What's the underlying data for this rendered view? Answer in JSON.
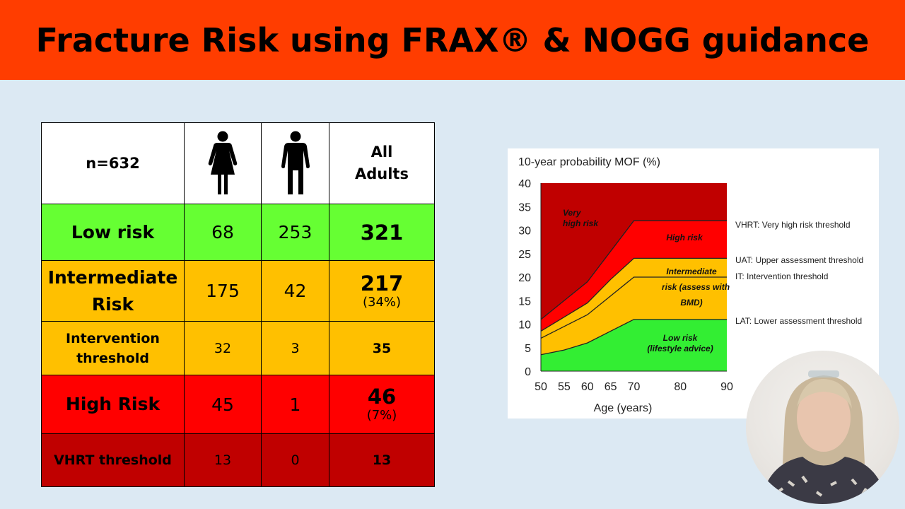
{
  "title": "Fracture Risk using FRAX® & NOGG guidance",
  "table": {
    "header": {
      "n_label": "n=632",
      "female_icon": "woman-icon",
      "male_icon": "man-icon",
      "all_line1": "All",
      "all_line2": "Adults"
    },
    "rows": [
      {
        "label": "Low risk",
        "female": "68",
        "male": "253",
        "all": "321",
        "pct": "",
        "color": "#66ff33"
      },
      {
        "label_line1": "Intermediate",
        "label_line2": "Risk",
        "female": "175",
        "male": "42",
        "all": "217",
        "pct": "(34%)",
        "color": "#ffc000"
      },
      {
        "label_line1": "Intervention",
        "label_line2": "threshold",
        "female": "32",
        "male": "3",
        "all": "35",
        "pct": "",
        "color": "#ffc000"
      },
      {
        "label": "High Risk",
        "female": "45",
        "male": "1",
        "all": "46",
        "pct": "(7%)",
        "color": "#ff0000"
      },
      {
        "label": "VHRT threshold",
        "female": "13",
        "male": "0",
        "all": "13",
        "pct": "",
        "color": "#c00000"
      }
    ]
  },
  "chart_data": {
    "type": "area",
    "title": "10-year probability MOF (%)",
    "xlabel": "Age (years)",
    "ylabel": "",
    "x": [
      50,
      55,
      60,
      65,
      70,
      75,
      80,
      85,
      90
    ],
    "xlim": [
      50,
      90
    ],
    "ylim": [
      0,
      40
    ],
    "x_ticks": [
      "50",
      "55",
      "60",
      "65",
      "70",
      "80",
      "90"
    ],
    "x_tick_values": [
      50,
      55,
      60,
      65,
      70,
      80,
      90
    ],
    "y_ticks": [
      "0",
      "5",
      "10",
      "15",
      "20",
      "25",
      "30",
      "35",
      "40"
    ],
    "y_tick_values": [
      0,
      5,
      10,
      15,
      20,
      25,
      30,
      35,
      40
    ],
    "boundaries": [
      {
        "name": "LAT",
        "x": [
          50,
          55,
          60,
          65,
          70,
          90
        ],
        "y": [
          3.5,
          4.5,
          6,
          8.5,
          11,
          11
        ]
      },
      {
        "name": "IT",
        "x": [
          50,
          55,
          60,
          65,
          70,
          90
        ],
        "y": [
          7,
          9.5,
          12,
          16,
          20,
          20
        ]
      },
      {
        "name": "UAT",
        "x": [
          50,
          55,
          60,
          65,
          70,
          90
        ],
        "y": [
          8.5,
          11.5,
          14.5,
          19.5,
          24,
          24
        ]
      },
      {
        "name": "VHRT",
        "x": [
          50,
          55,
          60,
          65,
          70,
          90
        ],
        "y": [
          11,
          15,
          19,
          25.5,
          32,
          32
        ]
      }
    ],
    "regions": [
      {
        "label_line1": "Very",
        "label_line2": "high risk",
        "color": "#c00000"
      },
      {
        "label_line1": "High risk",
        "label_line2": "",
        "color": "#ff0000"
      },
      {
        "label_line1": "Intermediate",
        "label_line2": "risk (assess with",
        "label_line3": "BMD)",
        "color": "#ffc000"
      },
      {
        "label_line1": "Low risk",
        "label_line2": "(lifestyle advice)",
        "color": "#33ee33"
      }
    ],
    "annotations": [
      "VHRT: Very high risk threshold",
      "UAT: Upper assessment threshold",
      "IT: Intervention threshold",
      "LAT: Lower assessment threshold"
    ],
    "grid": false,
    "legend": "none"
  },
  "webcam": {
    "icon": "presenter-video-icon"
  }
}
